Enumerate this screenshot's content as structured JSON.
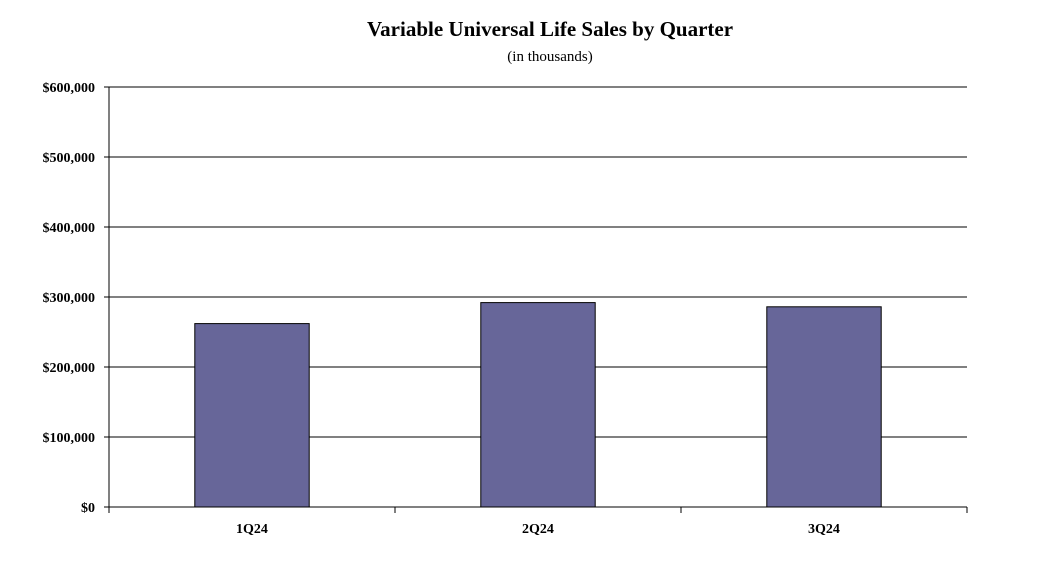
{
  "chart_data": {
    "type": "bar",
    "title": "Variable Universal Life Sales by Quarter",
    "subtitle": "(in thousands)",
    "xlabel": "",
    "ylabel": "",
    "categories": [
      "1Q24",
      "2Q24",
      "3Q24"
    ],
    "values": [
      262000,
      292000,
      286000
    ],
    "ylim": [
      0,
      600000
    ],
    "yticks": [
      0,
      100000,
      200000,
      300000,
      400000,
      500000,
      600000
    ],
    "ytick_labels": [
      "$0",
      "$100,000",
      "$200,000",
      "$300,000",
      "$400,000",
      "$500,000",
      "$600,000"
    ],
    "grid": true,
    "legend": "none",
    "bar_color": "#676699",
    "bar_edge_color": "#000000"
  }
}
